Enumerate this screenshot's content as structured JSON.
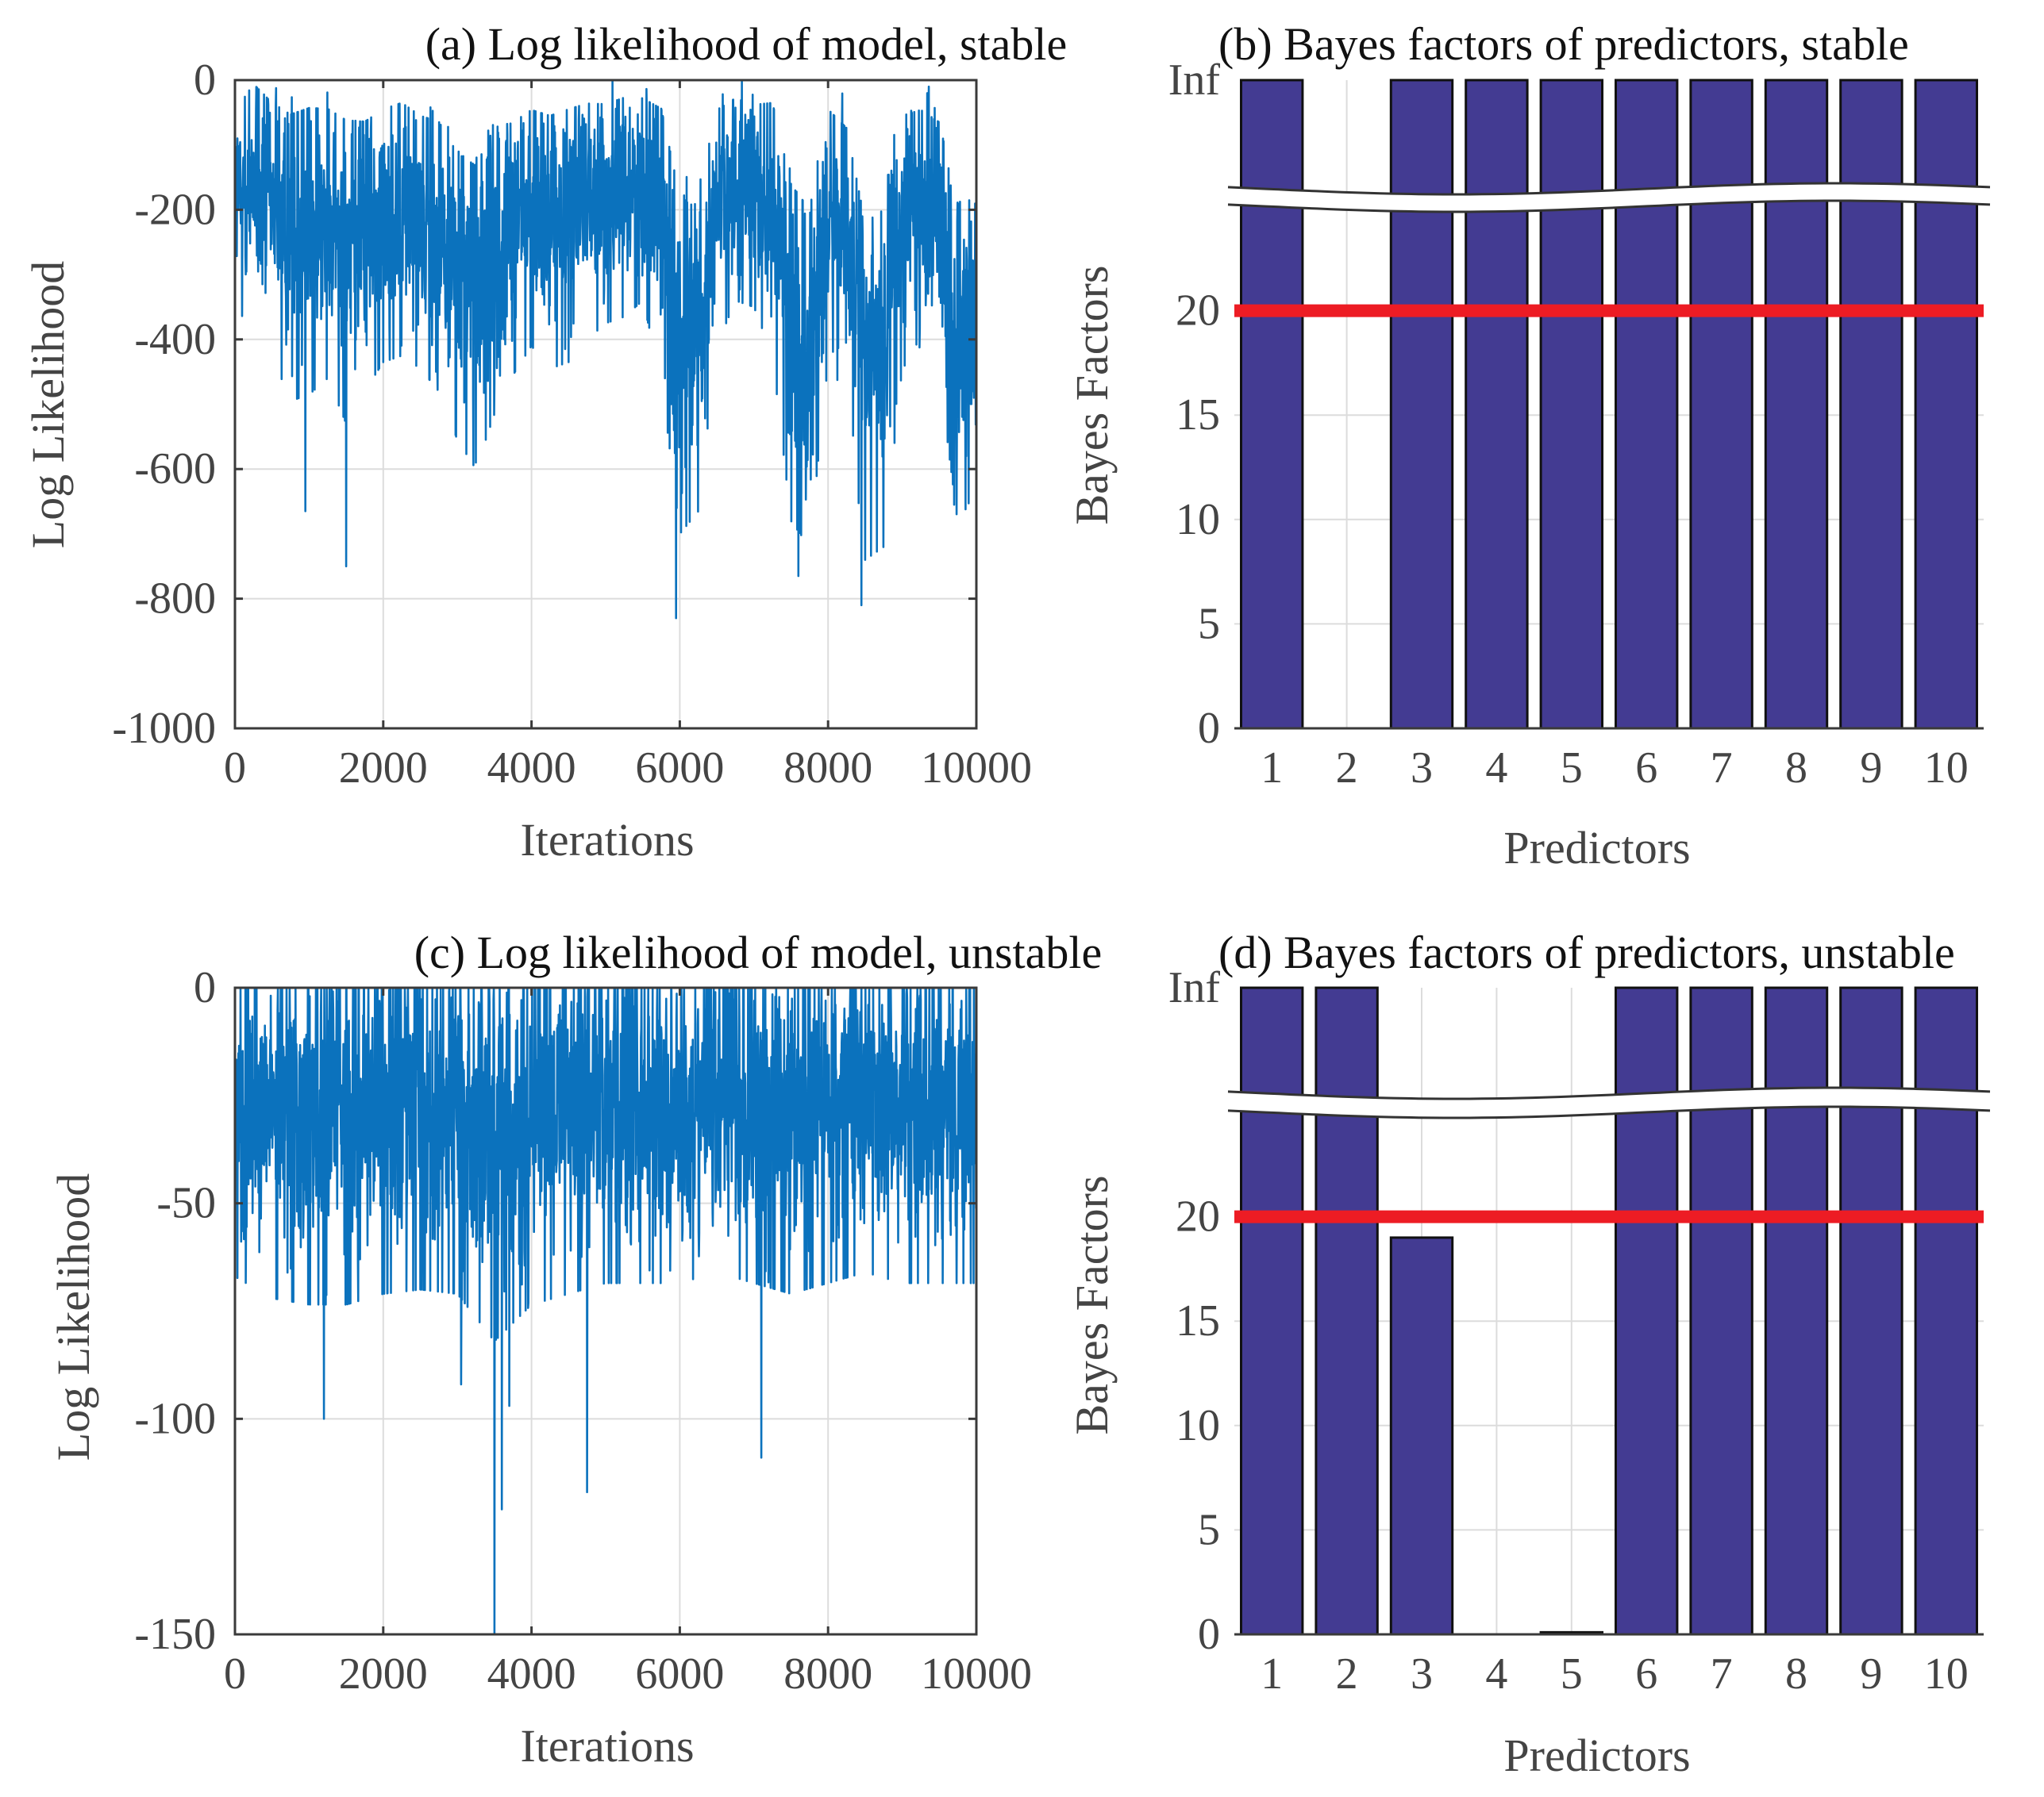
{
  "chart_data": [
    {
      "id": "a",
      "type": "line",
      "title": "(a) Log likelihood of model, stable",
      "xlabel": "Iterations",
      "ylabel": "Log Likelihood",
      "xlim": [
        0,
        10000
      ],
      "ylim": [
        -1000,
        0
      ],
      "xticks": [
        0,
        2000,
        4000,
        6000,
        8000,
        10000
      ],
      "yticks": [
        -1000,
        -800,
        -600,
        -400,
        -200,
        0
      ],
      "grid": true,
      "series": [
        {
          "name": "log likelihood",
          "color": "#0b72bd",
          "envelope_x": [
            0,
            250,
            500,
            750,
            1000,
            1250,
            1500,
            1750,
            2000,
            2250,
            2500,
            2750,
            3000,
            3250,
            3500,
            3750,
            4000,
            4250,
            4500,
            4750,
            5000,
            5250,
            5500,
            5750,
            6000,
            6250,
            6500,
            6750,
            7000,
            7250,
            7500,
            7750,
            8000,
            8250,
            8500,
            8750,
            9000,
            9250,
            9500,
            9750,
            10000
          ],
          "envelope_center": [
            -180,
            -160,
            -200,
            -240,
            -230,
            -220,
            -260,
            -240,
            -210,
            -200,
            -220,
            -240,
            -300,
            -330,
            -260,
            -230,
            -200,
            -220,
            -210,
            -190,
            -180,
            -170,
            -160,
            -220,
            -400,
            -380,
            -200,
            -160,
            -170,
            -200,
            -380,
            -420,
            -210,
            -250,
            -440,
            -420,
            -220,
            -200,
            -230,
            -400,
            -360
          ],
          "envelope_spread": [
            120,
            140,
            150,
            170,
            170,
            160,
            180,
            160,
            150,
            150,
            150,
            160,
            170,
            180,
            170,
            150,
            140,
            150,
            150,
            140,
            130,
            130,
            120,
            160,
            200,
            190,
            140,
            120,
            120,
            150,
            200,
            200,
            150,
            160,
            200,
            200,
            150,
            140,
            150,
            190,
            180
          ],
          "spikes": [
            {
              "x": 1500,
              "y": -750
            },
            {
              "x": 5950,
              "y": -830
            },
            {
              "x": 7600,
              "y": -765
            },
            {
              "x": 8450,
              "y": -810
            },
            {
              "x": 950,
              "y": -665
            },
            {
              "x": 3250,
              "y": -590
            },
            {
              "x": 9700,
              "y": -655
            }
          ]
        }
      ]
    },
    {
      "id": "b",
      "type": "bar",
      "title": "(b) Bayes factors of predictors, stable",
      "xlabel": "Predictors",
      "ylabel": "Bayes Factors",
      "categories": [
        "1",
        "2",
        "3",
        "4",
        "5",
        "6",
        "7",
        "8",
        "9",
        "10"
      ],
      "values": [
        "Inf",
        0,
        "Inf",
        "Inf",
        "Inf",
        "Inf",
        "Inf",
        "Inf",
        "Inf",
        "Inf"
      ],
      "ylim": [
        0,
        25
      ],
      "yticks": [
        0,
        5,
        10,
        15,
        20
      ],
      "ytick_top_label": "Inf",
      "threshold": 20,
      "bar_color": "#433b92",
      "threshold_color": "#ed1c24",
      "grid": true
    },
    {
      "id": "c",
      "type": "line",
      "title": "(c) Log likelihood of model, unstable",
      "xlabel": "Iterations",
      "ylabel": "Log Likelihood",
      "xlim": [
        0,
        10000
      ],
      "ylim": [
        -150,
        0
      ],
      "xticks": [
        0,
        2000,
        4000,
        6000,
        8000,
        10000
      ],
      "yticks": [
        -150,
        -100,
        -50,
        0
      ],
      "grid": true,
      "series": [
        {
          "name": "log likelihood",
          "color": "#0b72bd",
          "envelope_x": [
            0,
            500,
            1000,
            1500,
            2000,
            2500,
            3000,
            3500,
            4000,
            4500,
            5000,
            5500,
            6000,
            6500,
            7000,
            7500,
            8000,
            8500,
            9000,
            9500,
            10000
          ],
          "envelope_center": [
            -28,
            -30,
            -30,
            -30,
            -29,
            -28,
            -29,
            -34,
            -30,
            -29,
            -28,
            -28,
            -28,
            -27,
            -28,
            -29,
            -28,
            -27,
            -28,
            -28,
            -28
          ],
          "envelope_spread": [
            26,
            28,
            29,
            29,
            28,
            28,
            28,
            32,
            29,
            28,
            27,
            27,
            27,
            26,
            27,
            28,
            27,
            26,
            27,
            27,
            27
          ],
          "spikes": [
            {
              "x": 1200,
              "y": -100
            },
            {
              "x": 3500,
              "y": -150
            },
            {
              "x": 3600,
              "y": -121
            },
            {
              "x": 4750,
              "y": -117
            },
            {
              "x": 7100,
              "y": -109
            },
            {
              "x": 3050,
              "y": -92
            },
            {
              "x": 3700,
              "y": -97
            }
          ]
        }
      ]
    },
    {
      "id": "d",
      "type": "bar",
      "title": "(d) Bayes factors of predictors, unstable",
      "xlabel": "Predictors",
      "ylabel": "Bayes Factors",
      "categories": [
        "1",
        "2",
        "3",
        "4",
        "5",
        "6",
        "7",
        "8",
        "9",
        "10"
      ],
      "values": [
        "Inf",
        "Inf",
        19,
        0,
        0.1,
        "Inf",
        "Inf",
        "Inf",
        "Inf",
        "Inf"
      ],
      "ylim": [
        0,
        25
      ],
      "yticks": [
        0,
        5,
        10,
        15,
        20
      ],
      "ytick_top_label": "Inf",
      "threshold": 20,
      "bar_color": "#433b92",
      "threshold_color": "#ed1c24",
      "grid": true
    }
  ]
}
